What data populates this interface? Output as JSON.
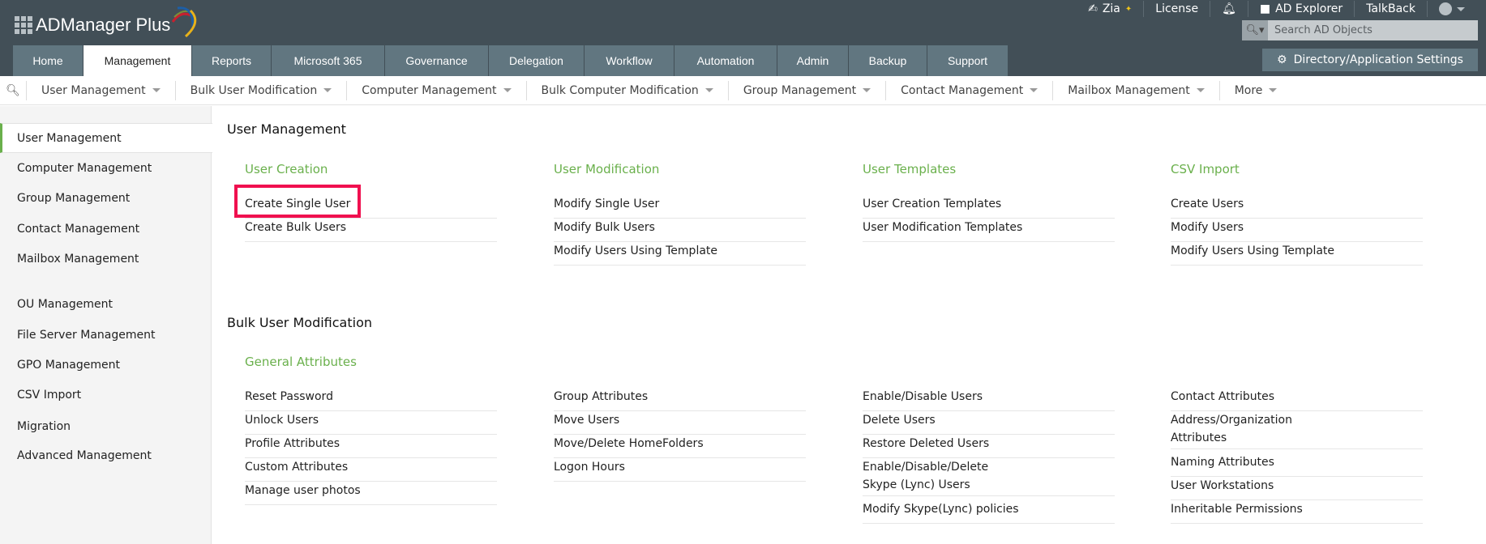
{
  "header": {
    "logo": "ADManager Plus",
    "top_links": {
      "zia": "Zia",
      "license": "License",
      "ad_explorer": "AD Explorer",
      "talkback": "TalkBack"
    },
    "search_placeholder": "Search AD Objects",
    "settings_button": "Directory/Application Settings"
  },
  "tabs": [
    "Home",
    "Management",
    "Reports",
    "Microsoft 365",
    "Governance",
    "Delegation",
    "Workflow",
    "Automation",
    "Admin",
    "Backup",
    "Support"
  ],
  "active_tab": "Management",
  "subnav": [
    "User Management",
    "Bulk User Modification",
    "Computer Management",
    "Bulk Computer Modification",
    "Group Management",
    "Contact Management",
    "Mailbox Management",
    "More"
  ],
  "sidebar": [
    "User Management",
    "Computer Management",
    "Group Management",
    "Contact Management",
    "Mailbox Management",
    "OU Management",
    "File Server Management",
    "GPO Management",
    "CSV Import",
    "Migration",
    "Advanced Management"
  ],
  "sections": {
    "user_management": {
      "title": "User Management",
      "groups": [
        {
          "title": "User Creation",
          "links": [
            "Create Single User",
            "Create Bulk Users"
          ]
        },
        {
          "title": "User Modification",
          "links": [
            "Modify Single User",
            "Modify Bulk Users",
            "Modify Users Using Template"
          ]
        },
        {
          "title": "User Templates",
          "links": [
            "User Creation Templates",
            "User Modification Templates"
          ]
        },
        {
          "title": "CSV Import",
          "links": [
            "Create Users",
            "Modify Users",
            "Modify Users Using Template"
          ]
        }
      ]
    },
    "bulk_user_modification": {
      "title": "Bulk User Modification",
      "group_title": "General Attributes",
      "columns": [
        [
          "Reset Password",
          "Unlock Users",
          "Profile Attributes",
          "Custom Attributes",
          "Manage user photos"
        ],
        [
          "Group Attributes",
          "Move Users",
          "Move/Delete HomeFolders",
          "Logon Hours"
        ],
        [
          "Enable/Disable Users",
          "Delete Users",
          "Restore Deleted Users",
          "Enable/Disable/Delete Skype (Lync) Users",
          "Modify Skype(Lync) policies"
        ],
        [
          "Contact Attributes",
          "Address/Organization Attributes",
          "Naming Attributes",
          "User Workstations",
          "Inheritable Permissions"
        ]
      ]
    }
  },
  "colors": {
    "header": "#424f57",
    "tab": "#617680",
    "accent_green": "#6ab04c",
    "highlight": "#f0104f"
  }
}
